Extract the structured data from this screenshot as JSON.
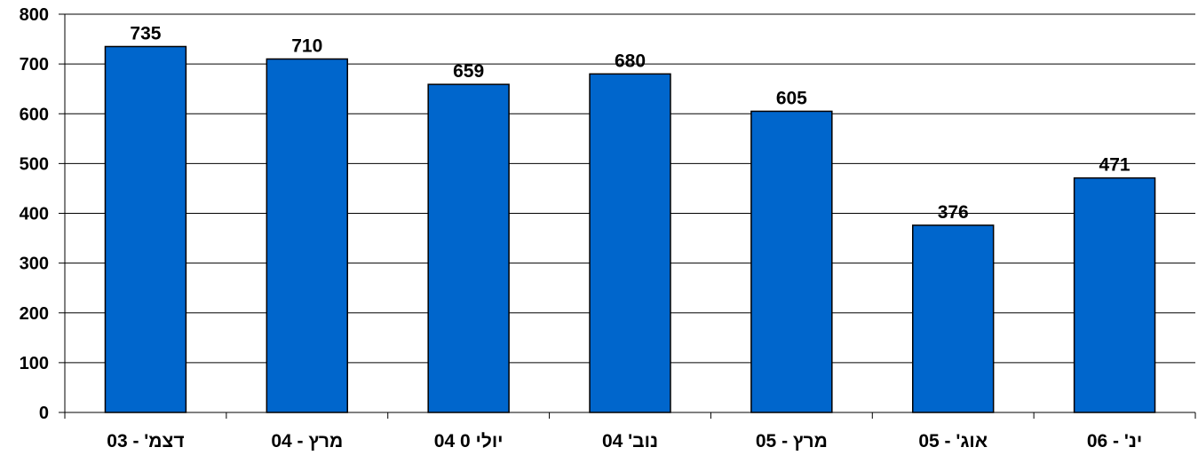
{
  "chart_data": {
    "type": "bar",
    "categories": [
      "דצמ' - 03",
      "מרץ - 04",
      "יולי 0 04",
      "נוב' 04",
      "מרץ - 05",
      "אוג' - 05",
      "ינ' - 06"
    ],
    "values": [
      735,
      710,
      659,
      680,
      605,
      376,
      471
    ],
    "ylim": [
      0,
      800
    ],
    "yticks": [
      "0",
      "100",
      "200",
      "300",
      "400",
      "500",
      "600",
      "700",
      "800"
    ],
    "grid": true,
    "bar_color": "#0066CC",
    "legend": "none"
  }
}
